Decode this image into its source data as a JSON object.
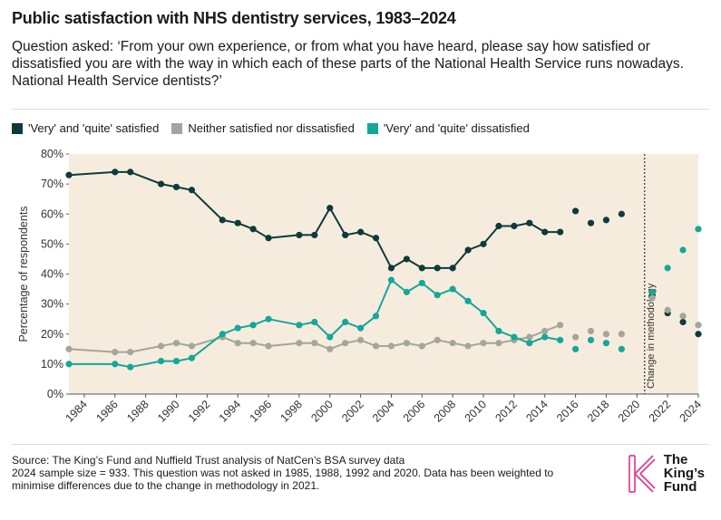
{
  "header": {
    "title": "Public satisfaction with NHS dentistry services, 1983–2024",
    "subtitle": "Question asked: ‘From your own experience, or from what you have heard, please say how satisfied or dissatisfied you are with the way in which each of these parts of the National Health Service runs nowadays. National Health Service dentists?’"
  },
  "colors": {
    "satisfied": "#0d3b3b",
    "neither": "#a3a69b",
    "dissatisfied": "#14a79a",
    "plot_bg": "#f6ecde"
  },
  "chart_data": {
    "type": "line",
    "xlabel": "",
    "ylabel": "Percentage of respondents",
    "xlim": [
      1983,
      2024
    ],
    "ylim": [
      0,
      80
    ],
    "x_ticks": [
      1984,
      1986,
      1988,
      1990,
      1992,
      1994,
      1996,
      1998,
      2000,
      2002,
      2004,
      2006,
      2008,
      2010,
      2012,
      2014,
      2016,
      2018,
      2020,
      2022,
      2024
    ],
    "y_ticks": [
      0,
      10,
      20,
      30,
      40,
      50,
      60,
      70,
      80
    ],
    "y_tick_labels": [
      "0%",
      "10%",
      "20%",
      "30%",
      "40%",
      "50%",
      "60%",
      "70%",
      "80%"
    ],
    "annotation": "Change in methodology",
    "annotation_x": 2020.5,
    "grid": false,
    "legend_position": "top-left",
    "series": [
      {
        "name": "'Very' and 'quite' satisfied",
        "color_key": "satisfied",
        "segments": [
          [
            [
              1983,
              73
            ],
            [
              1986,
              74
            ],
            [
              1987,
              74
            ],
            [
              1989,
              70
            ],
            [
              1990,
              69
            ],
            [
              1991,
              68
            ],
            [
              1993,
              58
            ],
            [
              1994,
              57
            ],
            [
              1995,
              55
            ],
            [
              1996,
              52
            ],
            [
              1998,
              53
            ],
            [
              1999,
              53
            ],
            [
              2000,
              62
            ],
            [
              2001,
              53
            ],
            [
              2002,
              54
            ],
            [
              2003,
              52
            ],
            [
              2004,
              42
            ],
            [
              2005,
              45
            ],
            [
              2006,
              42
            ],
            [
              2007,
              42
            ],
            [
              2008,
              42
            ],
            [
              2009,
              48
            ],
            [
              2010,
              50
            ],
            [
              2011,
              56
            ],
            [
              2012,
              56
            ],
            [
              2013,
              57
            ],
            [
              2014,
              54
            ],
            [
              2015,
              54
            ]
          ]
        ],
        "points": [
          [
            2016,
            61
          ],
          [
            2017,
            57
          ],
          [
            2018,
            58
          ],
          [
            2019,
            60
          ],
          [
            2021,
            33
          ],
          [
            2022,
            27
          ],
          [
            2023,
            24
          ],
          [
            2024,
            20
          ]
        ]
      },
      {
        "name": "Neither satisfied nor dissatisfied",
        "color_key": "neither",
        "segments": [
          [
            [
              1983,
              15
            ],
            [
              1986,
              14
            ],
            [
              1987,
              14
            ],
            [
              1989,
              16
            ],
            [
              1990,
              17
            ],
            [
              1991,
              16
            ],
            [
              1993,
              19
            ],
            [
              1994,
              17
            ],
            [
              1995,
              17
            ],
            [
              1996,
              16
            ],
            [
              1998,
              17
            ],
            [
              1999,
              17
            ],
            [
              2000,
              15
            ],
            [
              2001,
              17
            ],
            [
              2002,
              18
            ],
            [
              2003,
              16
            ],
            [
              2004,
              16
            ],
            [
              2005,
              17
            ],
            [
              2006,
              16
            ],
            [
              2007,
              18
            ],
            [
              2008,
              17
            ],
            [
              2009,
              16
            ],
            [
              2010,
              17
            ],
            [
              2011,
              17
            ],
            [
              2012,
              18
            ],
            [
              2013,
              19
            ],
            [
              2014,
              21
            ],
            [
              2015,
              23
            ]
          ]
        ],
        "points": [
          [
            2016,
            19
          ],
          [
            2017,
            21
          ],
          [
            2018,
            20
          ],
          [
            2019,
            20
          ],
          [
            2021,
            32
          ],
          [
            2022,
            28
          ],
          [
            2023,
            26
          ],
          [
            2024,
            23
          ]
        ]
      },
      {
        "name": "'Very' and 'quite' dissatisfied",
        "color_key": "dissatisfied",
        "segments": [
          [
            [
              1983,
              10
            ],
            [
              1986,
              10
            ],
            [
              1987,
              9
            ],
            [
              1989,
              11
            ],
            [
              1990,
              11
            ],
            [
              1991,
              12
            ],
            [
              1993,
              20
            ],
            [
              1994,
              22
            ],
            [
              1995,
              23
            ],
            [
              1996,
              25
            ],
            [
              1998,
              23
            ],
            [
              1999,
              24
            ],
            [
              2000,
              19
            ],
            [
              2001,
              24
            ],
            [
              2002,
              22
            ],
            [
              2003,
              26
            ],
            [
              2004,
              38
            ],
            [
              2005,
              34
            ],
            [
              2006,
              37
            ],
            [
              2007,
              33
            ],
            [
              2008,
              35
            ],
            [
              2009,
              31
            ],
            [
              2010,
              27
            ],
            [
              2011,
              21
            ],
            [
              2012,
              19
            ],
            [
              2013,
              17
            ],
            [
              2014,
              19
            ],
            [
              2015,
              18
            ]
          ]
        ],
        "points": [
          [
            2016,
            15
          ],
          [
            2017,
            18
          ],
          [
            2018,
            17
          ],
          [
            2019,
            15
          ],
          [
            2021,
            34
          ],
          [
            2022,
            42
          ],
          [
            2023,
            48
          ],
          [
            2024,
            55
          ]
        ]
      }
    ]
  },
  "footer": {
    "source_line1": "Source: The King’s Fund and Nuffield Trust analysis of NatCen’s BSA survey data",
    "source_line2": "2024 sample size = 933. This question was not asked in 1985, 1988, 1992 and 2020. Data has been weighted to minimise differences due to the change in methodology in 2021.",
    "logo_line1": "The",
    "logo_line2": "King’s",
    "logo_line3": "Fund"
  }
}
